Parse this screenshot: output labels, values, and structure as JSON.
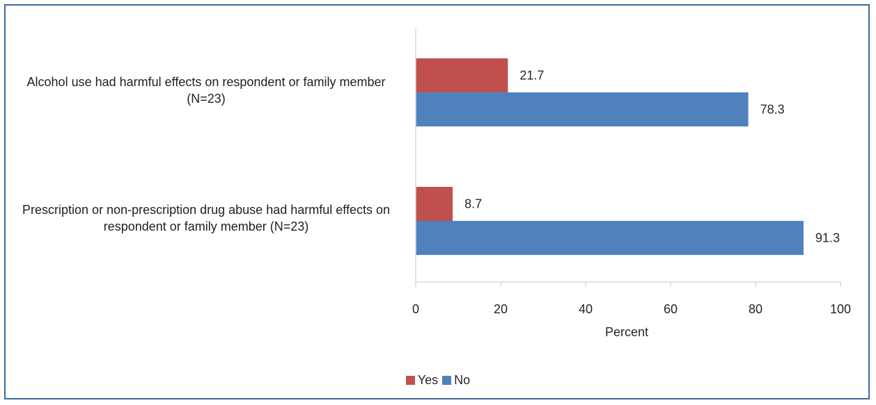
{
  "chart_data": {
    "type": "bar",
    "orientation": "horizontal",
    "categories": [
      "Alcohol use had harmful effects on respondent or family member (N=23)",
      "Prescription or non-prescription drug abuse had harmful effects on respondent or family member (N=23)"
    ],
    "series": [
      {
        "name": "Yes",
        "values": [
          21.7,
          8.7
        ],
        "color": "#c0504d"
      },
      {
        "name": "No",
        "values": [
          78.3,
          91.3
        ],
        "color": "#4f81bd"
      }
    ],
    "xlabel": "Percent",
    "xlim": [
      0,
      100
    ],
    "xticks": [
      "0",
      "20",
      "40",
      "60",
      "80",
      "100"
    ],
    "data_labels": {
      "Yes": [
        "21.7",
        "8.7"
      ],
      "No": [
        "78.3",
        "91.3"
      ]
    },
    "grid": false,
    "legend_position": "bottom"
  },
  "colors": {
    "frame_border": "#3d6a9c",
    "axis": "#d9d9d9"
  }
}
